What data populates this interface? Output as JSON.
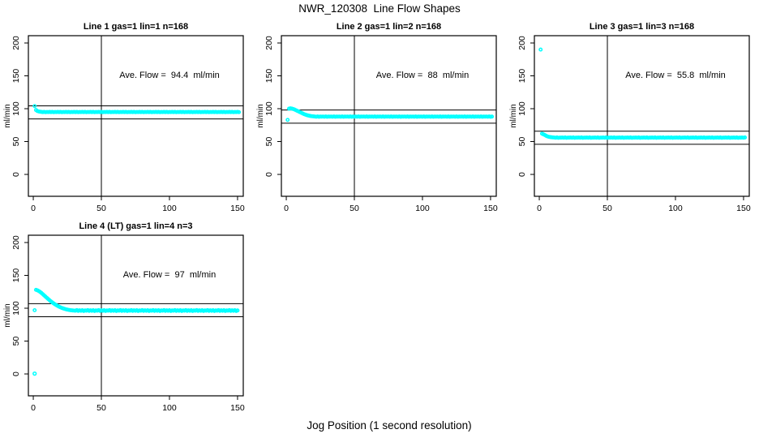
{
  "page": {
    "main_title": "NWR_120308  Line Flow Shapes",
    "xlabel": "Jog Position (1 second resolution)"
  },
  "colors": {
    "point": "#00FFFF",
    "axis": "#000000",
    "background": "#FFFFFF"
  },
  "chart_data": [
    {
      "type": "scatter",
      "title": "Line 1 gas=1 lin=1 n=168",
      "annotation": "Ave. Flow =  94.4  ml/min",
      "ave_flow_ml_min": 94.4,
      "n": 168,
      "ylabel": "ml/min",
      "xticks": [
        0,
        50,
        100,
        150
      ],
      "yticks": [
        0,
        50,
        100,
        150,
        200
      ],
      "xlim": [
        -3.6,
        154.2
      ],
      "ylim": [
        -33.3,
        211.1
      ],
      "vline_x": 50,
      "hlines": [
        104.4,
        84.4
      ],
      "x_start": 1,
      "y_values": [
        104,
        98,
        96.5,
        95.8,
        95.4,
        95.1,
        94.8,
        95.2,
        94.7,
        95,
        94.9,
        95.1,
        94.8,
        95.2,
        94.7,
        95,
        94.9,
        95.1,
        94.8,
        95.2,
        94.7,
        95,
        94.9,
        95.1,
        94.8,
        95.2,
        94.7,
        95,
        94.9,
        95.1,
        94.8,
        95.2,
        94.7,
        95,
        94.9,
        95.1,
        94.8,
        95.2,
        94.7,
        95,
        94.9,
        95.1,
        94.8,
        95.2,
        94.7,
        95,
        94.9,
        95.1,
        94.8,
        95.2,
        94.7,
        95,
        94.9,
        95.1,
        94.8,
        95.2,
        94.7,
        95,
        94.9,
        95.1,
        94.8,
        95.2,
        94.7,
        95,
        94.9,
        95.1,
        94.8,
        95.2,
        94.7,
        95,
        94.9,
        95.1,
        94.8,
        95.2,
        94.7,
        95,
        94.9,
        95.1,
        94.8,
        95.2,
        94.7,
        95,
        94.9,
        95.1,
        94.8,
        95.2,
        94.7,
        95,
        94.9,
        95.1,
        94.8,
        95.2,
        94.7,
        95,
        94.9,
        95.1,
        94.8,
        95.2,
        94.7,
        95,
        94.9,
        95.1,
        94.8,
        95.2,
        94.7,
        95,
        94.9,
        95.1,
        94.8,
        95.2,
        94.7,
        95,
        94.9,
        95.1,
        94.8,
        95.2,
        94.7,
        95,
        94.9,
        95.1,
        94.8,
        95.2,
        94.7,
        95,
        94.9,
        95.1,
        94.8,
        95.2,
        94.7,
        95,
        94.9,
        95.1,
        94.8,
        95.2,
        94.7,
        95,
        94.9,
        95.1,
        94.8,
        95.2,
        94.7,
        95,
        94.9,
        95.1,
        94.8,
        95.2,
        94.7,
        95,
        94.9,
        95.1,
        94.8
      ],
      "extra_points": []
    },
    {
      "type": "scatter",
      "title": "Line 2 gas=1 lin=2 n=168",
      "annotation": "Ave. Flow =  88  ml/min",
      "ave_flow_ml_min": 88,
      "n": 168,
      "ylabel": "ml/min",
      "xticks": [
        0,
        50,
        100,
        150
      ],
      "yticks": [
        0,
        50,
        100,
        150,
        200
      ],
      "xlim": [
        -3.6,
        154.2
      ],
      "ylim": [
        -33.3,
        211.1
      ],
      "vline_x": 50,
      "hlines": [
        98,
        78
      ],
      "x_start": 1,
      "y_values": [
        83,
        100,
        100.5,
        100.2,
        99.6,
        98.8,
        97.8,
        96.8,
        95.8,
        94.8,
        93.8,
        92.8,
        91.8,
        91,
        90.3,
        89.7,
        89.2,
        88.8,
        88.5,
        88.3,
        88.1,
        87.8,
        88.2,
        87.7,
        88,
        87.9,
        88.1,
        87.8,
        88.2,
        87.7,
        88,
        87.9,
        88.1,
        87.8,
        88.2,
        87.7,
        88,
        87.9,
        88.1,
        87.8,
        88.2,
        87.7,
        88,
        87.9,
        88.1,
        87.8,
        88.2,
        87.7,
        88,
        87.9,
        88.1,
        87.8,
        88.2,
        87.7,
        88,
        87.9,
        88.1,
        87.8,
        88.2,
        87.7,
        88,
        87.9,
        88.1,
        87.8,
        88.2,
        87.7,
        88,
        87.9,
        88.1,
        87.8,
        88.2,
        87.7,
        88,
        87.9,
        88.1,
        87.8,
        88.2,
        87.7,
        88,
        87.9,
        88.1,
        87.8,
        88.2,
        87.7,
        88,
        87.9,
        88.1,
        87.8,
        88.2,
        87.7,
        88,
        87.9,
        88.1,
        87.8,
        88.2,
        87.7,
        88,
        87.9,
        88.1,
        87.8,
        88.2,
        87.7,
        88,
        87.9,
        88.1,
        87.8,
        88.2,
        87.7,
        88,
        87.9,
        88.1,
        87.8,
        88.2,
        87.7,
        88,
        87.9,
        88.1,
        87.8,
        88.2,
        87.7,
        88,
        87.9,
        88.1,
        87.8,
        88.2,
        87.7,
        88,
        87.9,
        88.1,
        87.8,
        88.2,
        87.7,
        88,
        87.9,
        88.1,
        87.8,
        88.2,
        87.7,
        88,
        87.9,
        88.1,
        87.8,
        88.2,
        87.7,
        88,
        87.9,
        88.1,
        87.8,
        88.2,
        87.7,
        88
      ],
      "extra_points": []
    },
    {
      "type": "scatter",
      "title": "Line 3 gas=1 lin=3 n=168",
      "annotation": "Ave. Flow =  55.8  ml/min",
      "ave_flow_ml_min": 55.8,
      "n": 168,
      "ylabel": "ml/min",
      "xticks": [
        0,
        50,
        100,
        150
      ],
      "yticks": [
        0,
        50,
        100,
        150,
        200
      ],
      "xlim": [
        -3.6,
        154.2
      ],
      "ylim": [
        -33.3,
        211.1
      ],
      "vline_x": 50,
      "hlines": [
        65.8,
        45.8
      ],
      "x_start": 1,
      "y_values": [
        190,
        62,
        61,
        60,
        58.8,
        57.8,
        57.2,
        56.8,
        56.5,
        56.3,
        56.1,
        55.8,
        56.2,
        55.7,
        56,
        55.9,
        56.1,
        55.8,
        56.2,
        55.7,
        56,
        55.9,
        56.1,
        55.8,
        56.2,
        55.7,
        56,
        55.9,
        56.1,
        55.8,
        56.2,
        55.7,
        56,
        55.9,
        56.1,
        55.8,
        56.2,
        55.7,
        56,
        55.9,
        56.1,
        55.8,
        56.2,
        55.7,
        56,
        55.9,
        56.1,
        55.8,
        56.2,
        55.7,
        56,
        55.9,
        56.1,
        55.8,
        56.2,
        55.7,
        56,
        55.9,
        56.1,
        55.8,
        56.2,
        55.7,
        56,
        55.9,
        56.1,
        55.8,
        56.2,
        55.7,
        56,
        55.9,
        56.1,
        55.8,
        56.2,
        55.7,
        56,
        55.9,
        56.1,
        55.8,
        56.2,
        55.7,
        56,
        55.9,
        56.1,
        55.8,
        56.2,
        55.7,
        56,
        55.9,
        56.1,
        55.8,
        56.2,
        55.7,
        56,
        55.9,
        56.1,
        55.8,
        56.2,
        55.7,
        56,
        55.9,
        56.1,
        55.8,
        56.2,
        55.7,
        56,
        55.9,
        56.1,
        55.8,
        56.2,
        55.7,
        56,
        55.9,
        56.1,
        55.8,
        56.2,
        55.7,
        56,
        55.9,
        56.1,
        55.8,
        56.2,
        55.7,
        56,
        55.9,
        56.1,
        55.8,
        56.2,
        55.7,
        56,
        55.9,
        56.1,
        55.8,
        56.2,
        55.7,
        56,
        55.9,
        56.1,
        55.8,
        56.2,
        55.7,
        56,
        55.9,
        56.1,
        55.8,
        56.2,
        55.7,
        56,
        55.9,
        56.1,
        55.8,
        56.2
      ],
      "extra_points": []
    },
    {
      "type": "scatter",
      "title": "Line 4 (LT) gas=1 lin=4 n=3",
      "annotation": "Ave. Flow =  97  ml/min",
      "ave_flow_ml_min": 97,
      "n": 3,
      "ylabel": "ml/min",
      "xticks": [
        0,
        50,
        100,
        150
      ],
      "yticks": [
        0,
        50,
        100,
        150,
        200
      ],
      "xlim": [
        -3.6,
        154.2
      ],
      "ylim": [
        -33.3,
        211.1
      ],
      "vline_x": 50,
      "hlines": [
        107,
        87
      ],
      "x_start": 1,
      "y_values": [
        97,
        128,
        127.3,
        126.2,
        124.8,
        123.2,
        121.4,
        119.5,
        117.6,
        115.7,
        113.9,
        112.1,
        110.4,
        108.8,
        107.3,
        105.9,
        104.6,
        103.4,
        102.3,
        101.3,
        100.4,
        99.7,
        99,
        98.4,
        97.9,
        97.5,
        97.1,
        96.8,
        96.6,
        96.4,
        96.3,
        97.2,
        95.9,
        96.8,
        96.1,
        97,
        95.8,
        96.6,
        96.3,
        97.2,
        95.9,
        96.8,
        96.1,
        97,
        95.8,
        96.6,
        96.3,
        97.2,
        95.9,
        96.8,
        96.1,
        97,
        95.8,
        96.6,
        96.3,
        97.2,
        95.9,
        96.8,
        96.1,
        97,
        95.8,
        96.6,
        96.3,
        97.2,
        95.9,
        96.8,
        96.1,
        97,
        95.8,
        96.6,
        96.3,
        97.2,
        95.9,
        96.8,
        96.1,
        97,
        95.8,
        96.6,
        96.3,
        97.2,
        95.9,
        96.8,
        96.1,
        97,
        95.8,
        96.6,
        96.3,
        97.2,
        95.9,
        96.8,
        96.1,
        97,
        95.8,
        96.6,
        96.3,
        97.2,
        95.9,
        96.8,
        96.1,
        97,
        95.8,
        96.6,
        96.3,
        97.2,
        95.9,
        96.8,
        96.1,
        97,
        95.8,
        96.6,
        96.3,
        97.2,
        95.9,
        96.8,
        96.1,
        97,
        95.8,
        96.6,
        96.3,
        97.2,
        95.9,
        96.8,
        96.1,
        97,
        95.8,
        96.6,
        96.3,
        97.2,
        95.9,
        96.8,
        96.1,
        97,
        95.8,
        96.6,
        96.3,
        97.2,
        95.9,
        96.8,
        96.1,
        97,
        95.8,
        96.6,
        96.3,
        97.2,
        95.9,
        96.8,
        96.1,
        97,
        95.8,
        96.6
      ],
      "extra_points": [
        [
          1,
          0.5
        ]
      ]
    }
  ]
}
